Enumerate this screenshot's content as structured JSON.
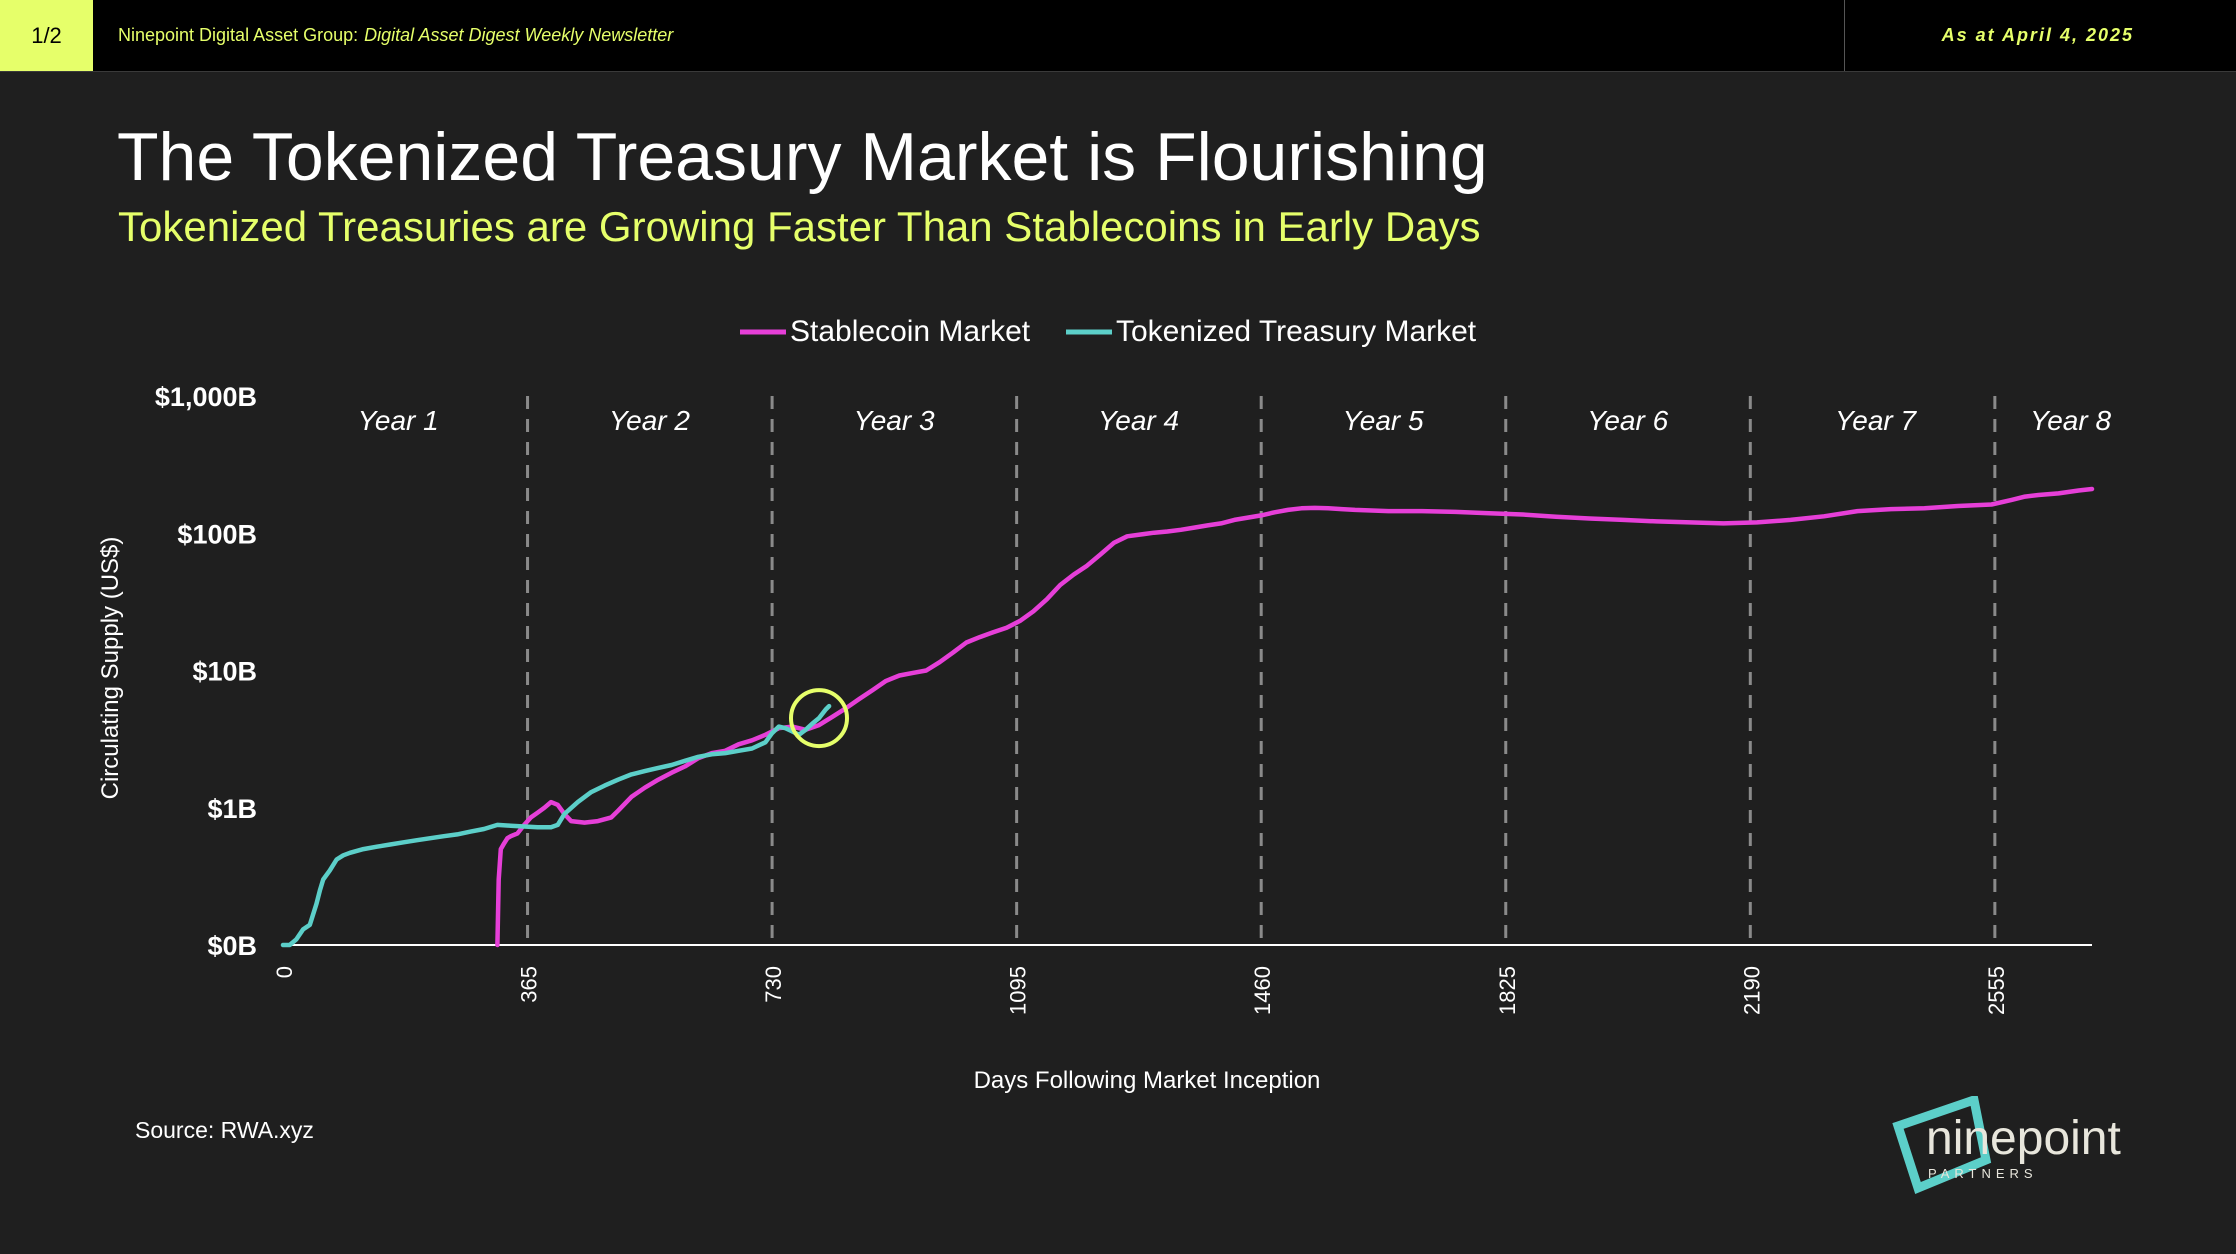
{
  "header": {
    "page_indicator": "1/2",
    "org": "Ninepoint Digital Asset Group:",
    "newsletter": "Digital Asset Digest Weekly Newsletter",
    "as_at": "As at April 4, 2025"
  },
  "title": "The Tokenized Treasury Market is Flourishing",
  "subtitle": "Tokenized Treasuries are Growing Faster Than Stablecoins in Early Days",
  "source": "Source: RWA.xyz",
  "logo": {
    "name": "ninepoint",
    "tag": "PARTNERS"
  },
  "colors": {
    "accent": "#e6ff6a",
    "stablecoin": "#e63fd8",
    "treasury": "#5ccfc9",
    "background": "#1f1f1f",
    "topbar": "#000000"
  },
  "chart_data": {
    "type": "line",
    "yscale": "log",
    "xlabel": "Days Following Market Inception",
    "ylabel": "Circulating Supply (US$)",
    "xlim": [
      0,
      2700
    ],
    "xticks": [
      0,
      365,
      730,
      1095,
      1460,
      1825,
      2190,
      2555
    ],
    "yticks": [
      {
        "value": 0.1,
        "label": "$0B"
      },
      {
        "value": 1,
        "label": "$1B"
      },
      {
        "value": 10,
        "label": "$10B"
      },
      {
        "value": 100,
        "label": "$100B"
      },
      {
        "value": 1000,
        "label": "$1,000B"
      }
    ],
    "ylim": [
      0.1,
      1000
    ],
    "year_markers": [
      365,
      730,
      1095,
      1460,
      1825,
      2190,
      2555
    ],
    "year_labels": [
      {
        "label": "Year 1",
        "x": 172
      },
      {
        "label": "Year 2",
        "x": 547
      },
      {
        "label": "Year 3",
        "x": 912
      },
      {
        "label": "Year 4",
        "x": 1277
      },
      {
        "label": "Year 5",
        "x": 1642
      },
      {
        "label": "Year 6",
        "x": 2007
      },
      {
        "label": "Year 7",
        "x": 2377
      },
      {
        "label": "Year 8",
        "x": 2668
      }
    ],
    "highlight": {
      "x": 800,
      "y": 4.5
    },
    "series": [
      {
        "name": "Stablecoin Market",
        "points": [
          [
            320,
            0.1
          ],
          [
            322,
            0.3
          ],
          [
            325,
            0.5
          ],
          [
            330,
            0.55
          ],
          [
            335,
            0.6
          ],
          [
            340,
            0.62
          ],
          [
            350,
            0.65
          ],
          [
            360,
            0.75
          ],
          [
            370,
            0.85
          ],
          [
            380,
            0.92
          ],
          [
            390,
            1.0
          ],
          [
            400,
            1.1
          ],
          [
            410,
            1.05
          ],
          [
            420,
            0.9
          ],
          [
            430,
            0.8
          ],
          [
            450,
            0.78
          ],
          [
            470,
            0.8
          ],
          [
            490,
            0.85
          ],
          [
            500,
            0.95
          ],
          [
            520,
            1.2
          ],
          [
            540,
            1.4
          ],
          [
            560,
            1.6
          ],
          [
            580,
            1.8
          ],
          [
            600,
            2.0
          ],
          [
            620,
            2.3
          ],
          [
            640,
            2.5
          ],
          [
            660,
            2.6
          ],
          [
            680,
            2.9
          ],
          [
            700,
            3.1
          ],
          [
            720,
            3.4
          ],
          [
            740,
            3.8
          ],
          [
            760,
            3.9
          ],
          [
            780,
            3.7
          ],
          [
            800,
            4.0
          ],
          [
            820,
            4.6
          ],
          [
            840,
            5.3
          ],
          [
            860,
            6.2
          ],
          [
            880,
            7.2
          ],
          [
            900,
            8.4
          ],
          [
            920,
            9.2
          ],
          [
            940,
            9.6
          ],
          [
            960,
            10.0
          ],
          [
            980,
            11.5
          ],
          [
            1000,
            13.5
          ],
          [
            1020,
            16.0
          ],
          [
            1040,
            17.5
          ],
          [
            1060,
            19.0
          ],
          [
            1080,
            20.5
          ],
          [
            1100,
            23.0
          ],
          [
            1120,
            27.0
          ],
          [
            1140,
            33.0
          ],
          [
            1160,
            42.0
          ],
          [
            1180,
            50.0
          ],
          [
            1200,
            58.0
          ],
          [
            1220,
            70.0
          ],
          [
            1240,
            85.0
          ],
          [
            1260,
            95.0
          ],
          [
            1280,
            98.0
          ],
          [
            1300,
            101.0
          ],
          [
            1320,
            103.0
          ],
          [
            1340,
            106.0
          ],
          [
            1360,
            110.0
          ],
          [
            1380,
            114.0
          ],
          [
            1400,
            118.0
          ],
          [
            1420,
            125.0
          ],
          [
            1440,
            130.0
          ],
          [
            1460,
            135.0
          ],
          [
            1480,
            142.0
          ],
          [
            1500,
            148.0
          ],
          [
            1520,
            152.0
          ],
          [
            1540,
            153.0
          ],
          [
            1560,
            152.0
          ],
          [
            1580,
            150.0
          ],
          [
            1600,
            148.0
          ],
          [
            1650,
            145.0
          ],
          [
            1700,
            145.0
          ],
          [
            1750,
            143.0
          ],
          [
            1800,
            140.0
          ],
          [
            1850,
            137.0
          ],
          [
            1900,
            132.0
          ],
          [
            1950,
            128.0
          ],
          [
            2000,
            125.0
          ],
          [
            2050,
            122.0
          ],
          [
            2100,
            120.0
          ],
          [
            2150,
            118.0
          ],
          [
            2200,
            120.0
          ],
          [
            2250,
            125.0
          ],
          [
            2300,
            133.0
          ],
          [
            2350,
            145.0
          ],
          [
            2400,
            150.0
          ],
          [
            2450,
            152.0
          ],
          [
            2500,
            158.0
          ],
          [
            2550,
            162.0
          ],
          [
            2580,
            175.0
          ],
          [
            2600,
            185.0
          ],
          [
            2620,
            190.0
          ],
          [
            2650,
            195.0
          ],
          [
            2680,
            205.0
          ],
          [
            2700,
            210.0
          ]
        ]
      },
      {
        "name": "Tokenized Treasury Market",
        "points": [
          [
            0,
            0.1
          ],
          [
            10,
            0.1
          ],
          [
            20,
            0.11
          ],
          [
            30,
            0.13
          ],
          [
            40,
            0.14
          ],
          [
            50,
            0.2
          ],
          [
            55,
            0.25
          ],
          [
            60,
            0.3
          ],
          [
            70,
            0.35
          ],
          [
            80,
            0.42
          ],
          [
            90,
            0.45
          ],
          [
            100,
            0.47
          ],
          [
            120,
            0.5
          ],
          [
            140,
            0.52
          ],
          [
            160,
            0.54
          ],
          [
            180,
            0.56
          ],
          [
            200,
            0.58
          ],
          [
            220,
            0.6
          ],
          [
            240,
            0.62
          ],
          [
            260,
            0.64
          ],
          [
            280,
            0.67
          ],
          [
            300,
            0.7
          ],
          [
            320,
            0.75
          ],
          [
            340,
            0.74
          ],
          [
            360,
            0.73
          ],
          [
            380,
            0.72
          ],
          [
            400,
            0.72
          ],
          [
            410,
            0.75
          ],
          [
            420,
            0.9
          ],
          [
            440,
            1.1
          ],
          [
            460,
            1.3
          ],
          [
            480,
            1.45
          ],
          [
            500,
            1.6
          ],
          [
            520,
            1.75
          ],
          [
            540,
            1.85
          ],
          [
            560,
            1.95
          ],
          [
            580,
            2.05
          ],
          [
            600,
            2.2
          ],
          [
            620,
            2.35
          ],
          [
            640,
            2.45
          ],
          [
            660,
            2.5
          ],
          [
            680,
            2.6
          ],
          [
            700,
            2.7
          ],
          [
            720,
            3.0
          ],
          [
            730,
            3.5
          ],
          [
            740,
            3.9
          ],
          [
            750,
            3.8
          ],
          [
            760,
            3.6
          ],
          [
            770,
            3.4
          ],
          [
            780,
            3.7
          ],
          [
            790,
            4.1
          ],
          [
            800,
            4.5
          ],
          [
            810,
            5.2
          ],
          [
            815,
            5.5
          ]
        ]
      }
    ]
  }
}
